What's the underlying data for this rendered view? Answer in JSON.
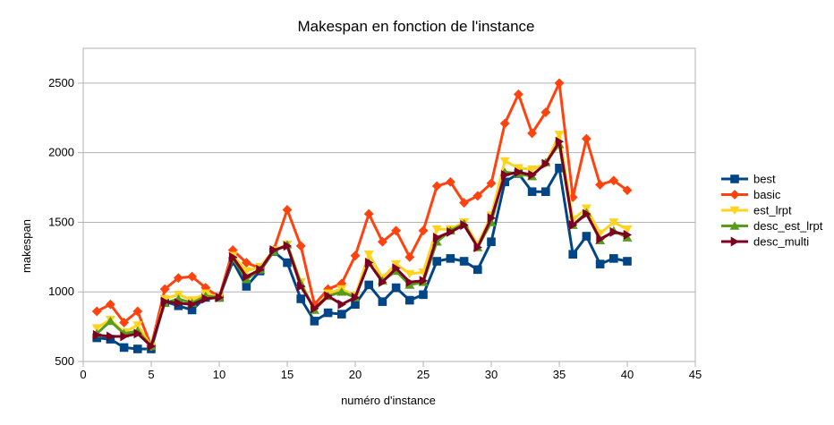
{
  "chart_data": {
    "type": "line",
    "title": "Makespan en fonction de l'instance",
    "xlabel": "numéro d'instance",
    "ylabel": "makespan",
    "xlim": [
      0,
      45
    ],
    "ylim": [
      500,
      2750
    ],
    "xticks": [
      0,
      5,
      10,
      15,
      20,
      25,
      30,
      35,
      40,
      45
    ],
    "yticks": [
      500,
      1000,
      1500,
      2000,
      2500
    ],
    "grid": "horizontal",
    "legend_position": "right",
    "x": [
      1,
      2,
      3,
      4,
      5,
      6,
      7,
      8,
      9,
      10,
      11,
      12,
      13,
      14,
      15,
      16,
      17,
      18,
      19,
      20,
      21,
      22,
      23,
      24,
      25,
      26,
      27,
      28,
      29,
      30,
      31,
      32,
      33,
      34,
      35,
      36,
      37,
      38,
      39,
      40
    ],
    "series": [
      {
        "name": "best",
        "color": "#004586",
        "marker": "square",
        "values": [
          670,
          660,
          600,
          590,
          590,
          930,
          900,
          870,
          960,
          960,
          1220,
          1040,
          1150,
          1290,
          1210,
          950,
          790,
          850,
          840,
          910,
          1050,
          930,
          1030,
          940,
          980,
          1220,
          1240,
          1220,
          1160,
          1360,
          1790,
          1850,
          1720,
          1720,
          1890,
          1270,
          1400,
          1200,
          1240,
          1220
        ]
      },
      {
        "name": "basic",
        "color": "#ff420e",
        "marker": "diamond",
        "values": [
          860,
          910,
          780,
          860,
          610,
          1020,
          1100,
          1110,
          1030,
          960,
          1300,
          1210,
          1170,
          1300,
          1590,
          1330,
          910,
          1020,
          1060,
          1260,
          1560,
          1360,
          1440,
          1250,
          1440,
          1760,
          1790,
          1640,
          1690,
          1780,
          2210,
          2420,
          2140,
          2290,
          2500,
          1680,
          2100,
          1770,
          1800,
          1730
        ]
      },
      {
        "name": "est_lrpt",
        "color": "#ffd320",
        "marker": "triangle-down",
        "values": [
          740,
          800,
          710,
          760,
          610,
          950,
          980,
          940,
          990,
          960,
          1260,
          1150,
          1180,
          1300,
          1340,
          1070,
          870,
          990,
          1020,
          970,
          1270,
          1100,
          1200,
          1130,
          1140,
          1450,
          1450,
          1500,
          1340,
          1550,
          1940,
          1890,
          1880,
          1920,
          2130,
          1520,
          1600,
          1420,
          1500,
          1450
        ]
      },
      {
        "name": "desc_est_lrpt",
        "color": "#579d1c",
        "marker": "triangle-up",
        "values": [
          700,
          790,
          700,
          720,
          610,
          920,
          950,
          920,
          970,
          960,
          1240,
          1090,
          1160,
          1290,
          1340,
          1060,
          870,
          970,
          1000,
          960,
          1210,
          1080,
          1150,
          1050,
          1070,
          1360,
          1440,
          1490,
          1320,
          1500,
          1860,
          1850,
          1830,
          1930,
          2060,
          1480,
          1570,
          1370,
          1440,
          1390
        ]
      },
      {
        "name": "desc_multi",
        "color": "#7e0021",
        "marker": "triangle-right",
        "values": [
          690,
          680,
          680,
          700,
          610,
          930,
          920,
          910,
          950,
          960,
          1250,
          1110,
          1160,
          1300,
          1330,
          1040,
          880,
          970,
          910,
          960,
          1210,
          1070,
          1170,
          1070,
          1080,
          1390,
          1430,
          1480,
          1320,
          1530,
          1840,
          1860,
          1840,
          1920,
          2080,
          1480,
          1560,
          1380,
          1430,
          1410
        ]
      }
    ]
  }
}
